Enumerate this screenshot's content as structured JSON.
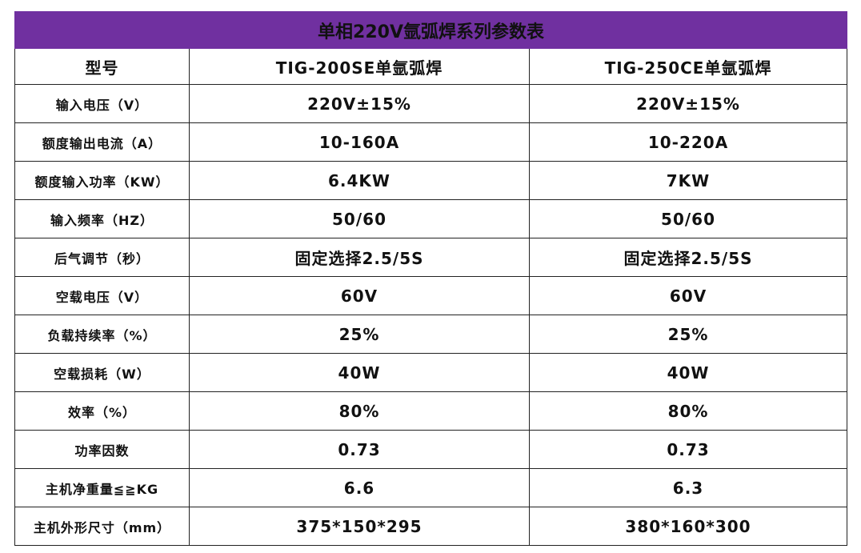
{
  "table": {
    "title": "单相220V氩弧焊系列参数表",
    "header": [
      "型号",
      "TIG-200SE单氩弧焊",
      "TIG-250CE单氩弧焊"
    ],
    "rows": [
      [
        "输入电压（V）",
        "220V±15%",
        "220V±15%"
      ],
      [
        "额度输出电流（A）",
        "10-160A",
        "10-220A"
      ],
      [
        "额度输入功率（KW）",
        "6.4KW",
        "7KW"
      ],
      [
        "输入频率（HZ）",
        "50/60",
        "50/60"
      ],
      [
        "后气调节（秒）",
        "固定选择2.5/5S",
        "固定选择2.5/5S"
      ],
      [
        "空载电压（V）",
        "60V",
        "60V"
      ],
      [
        "负载持续率（%）",
        "25%",
        "25%"
      ],
      [
        "空载损耗（W）",
        "40W",
        "40W"
      ],
      [
        "效率（%）",
        "80%",
        "80%"
      ],
      [
        "功率因数",
        "0.73",
        "0.73"
      ],
      [
        "主机净重量≦≧KG",
        "6.6",
        "6.3"
      ],
      [
        "主机外形尺寸（mm）",
        "375*150*295",
        "380*160*300"
      ]
    ]
  }
}
